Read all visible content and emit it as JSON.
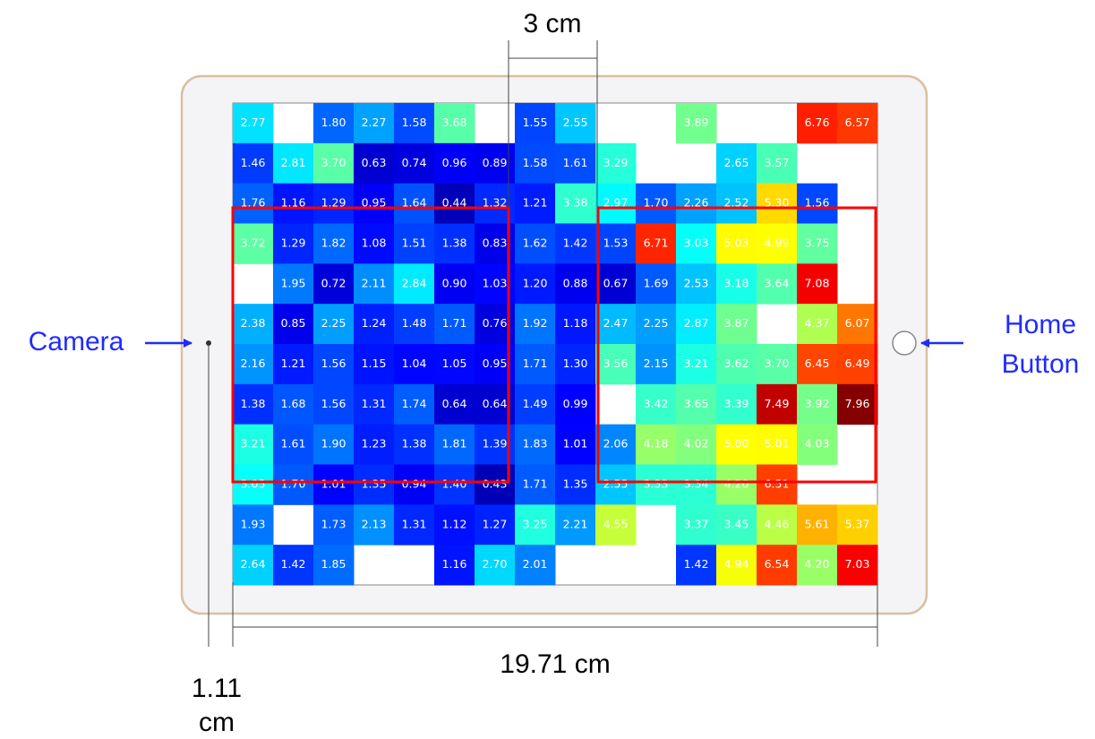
{
  "chart_data": {
    "type": "heatmap",
    "colormap": "jet",
    "clim": [
      0,
      8
    ],
    "z": [
      [
        2.77,
        null,
        1.8,
        2.27,
        1.58,
        3.68,
        null,
        1.55,
        2.55,
        null,
        null,
        3.89,
        null,
        null,
        6.76,
        6.57
      ],
      [
        1.46,
        2.81,
        3.7,
        0.63,
        0.74,
        0.96,
        0.89,
        1.58,
        1.61,
        3.29,
        null,
        null,
        2.65,
        3.57,
        null,
        null
      ],
      [
        1.76,
        1.16,
        1.29,
        0.95,
        1.64,
        0.44,
        1.32,
        1.21,
        3.38,
        2.97,
        1.7,
        2.26,
        2.52,
        5.3,
        1.56,
        null
      ],
      [
        3.72,
        1.29,
        1.82,
        1.08,
        1.51,
        1.38,
        0.83,
        1.62,
        1.42,
        1.53,
        6.71,
        3.03,
        5.03,
        4.99,
        3.75,
        null
      ],
      [
        null,
        1.95,
        0.72,
        2.11,
        2.84,
        0.9,
        1.03,
        1.2,
        0.88,
        0.67,
        1.69,
        2.53,
        3.18,
        3.64,
        7.08,
        null
      ],
      [
        2.38,
        0.85,
        2.25,
        1.24,
        1.48,
        1.71,
        0.76,
        1.92,
        1.18,
        2.47,
        2.25,
        2.87,
        3.87,
        null,
        4.37,
        6.07
      ],
      [
        2.16,
        1.21,
        1.56,
        1.15,
        1.04,
        1.05,
        0.95,
        1.71,
        1.3,
        3.56,
        2.15,
        3.21,
        3.62,
        3.7,
        6.45,
        6.49
      ],
      [
        1.38,
        1.68,
        1.56,
        1.31,
        1.74,
        0.64,
        0.64,
        1.49,
        0.99,
        null,
        3.42,
        3.65,
        3.39,
        7.49,
        3.92,
        7.96
      ],
      [
        3.21,
        1.61,
        1.9,
        1.23,
        1.38,
        1.81,
        1.39,
        1.83,
        1.01,
        2.06,
        4.18,
        4.02,
        5.0,
        5.01,
        4.03,
        null
      ],
      [
        3.05,
        1.7,
        1.01,
        1.35,
        0.94,
        1.4,
        0.43,
        1.71,
        1.35,
        2.55,
        3.33,
        3.34,
        4.2,
        6.51,
        null,
        null
      ],
      [
        1.93,
        null,
        1.73,
        2.13,
        1.31,
        1.12,
        1.27,
        3.25,
        2.21,
        4.55,
        null,
        3.37,
        3.45,
        4.46,
        5.61,
        5.37
      ],
      [
        2.64,
        1.42,
        1.85,
        null,
        null,
        1.16,
        2.7,
        2.01,
        null,
        null,
        null,
        1.42,
        4.94,
        6.54,
        4.2,
        7.03
      ]
    ],
    "value_labels": [
      [
        "2.77",
        null,
        "1.80",
        "2.27",
        "1.58",
        "3.68",
        null,
        "1.55",
        "2.55",
        null,
        null,
        "3.89",
        null,
        null,
        "6.76",
        "6.57"
      ],
      [
        "1.46",
        "2.81",
        "3.70",
        "0.63",
        "0.74",
        "0.96",
        "0.89",
        "1.58",
        "1.61",
        "3.29",
        null,
        null,
        "2.65",
        "3.57",
        null,
        null
      ],
      [
        "1.76",
        "1.16",
        "1.29",
        "0.95",
        "1.64",
        "0.44",
        "1.32",
        "1.21",
        "3.38",
        "2.97",
        "1.70",
        "2.26",
        "2.52",
        "5.30",
        "1.56",
        null
      ],
      [
        "3.72",
        "1.29",
        "1.82",
        "1.08",
        "1.51",
        "1.38",
        "0.83",
        "1.62",
        "1.42",
        "1.53",
        "6.71",
        "3.03",
        "5.03",
        "4.99",
        "3.75",
        null
      ],
      [
        null,
        "1.95",
        "0.72",
        "2.11",
        "2.84",
        "0.90",
        "1.03",
        "1.20",
        "0.88",
        "0.67",
        "1.69",
        "2.53",
        "3.18",
        "3.64",
        "7.08",
        null
      ],
      [
        "2.38",
        "0.85",
        "2.25",
        "1.24",
        "1.48",
        "1.71",
        "0.76",
        "1.92",
        "1.18",
        "2.47",
        "2.25",
        "2.87",
        "3.87",
        null,
        "4.37",
        "6.07"
      ],
      [
        "2.16",
        "1.21",
        "1.56",
        "1.15",
        "1.04",
        "1.05",
        "0.95",
        "1.71",
        "1.30",
        "3.56",
        "2.15",
        "3.21",
        "3.62",
        "3.70",
        "6.45",
        "6.49"
      ],
      [
        "1.38",
        "1.68",
        "1.56",
        "1.31",
        "1.74",
        "0.64",
        "0.64",
        "1.49",
        "0.99",
        null,
        "3.42",
        "3.65",
        "3.39",
        "7.49",
        "3.92",
        "7.96"
      ],
      [
        "3.21",
        "1.61",
        "1.90",
        "1.23",
        "1.38",
        "1.81",
        "1.39",
        "1.83",
        "1.01",
        "2.06",
        "4.18",
        "4.02",
        "5.00",
        "5.01",
        "4.03",
        null
      ],
      [
        "3.05",
        "1.70",
        "1.01",
        "1.35",
        "0.94",
        "1.40",
        "0.43",
        "1.71",
        "1.35",
        "2.55",
        "3.33",
        "3.34",
        "4.20",
        "6.51",
        null,
        null
      ],
      [
        "1.93",
        null,
        "1.73",
        "2.13",
        "1.31",
        "1.12",
        "1.27",
        "3.25",
        "2.21",
        "4.55",
        null,
        "3.37",
        "3.45",
        "4.46",
        "5.61",
        "5.37"
      ],
      [
        "2.64",
        "1.42",
        "1.85",
        null,
        null,
        "1.16",
        "2.70",
        "2.01",
        null,
        null,
        null,
        "1.42",
        "4.94",
        "6.54",
        "4.20",
        "7.03"
      ]
    ],
    "annotations": {
      "gap": "3 cm",
      "camera": "Camera",
      "home_1": "Home",
      "home_2": "Button",
      "width": "19.71 cm",
      "offset_1": "1.11",
      "offset_2": "cm"
    }
  }
}
